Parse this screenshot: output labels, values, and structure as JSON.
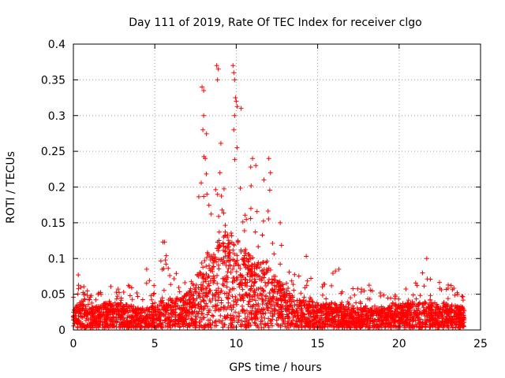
{
  "chart_data": {
    "type": "scatter",
    "title": "Day 111 of 2019, Rate Of TEC Index for receiver clgo",
    "xlabel": "GPS time / hours",
    "ylabel": "ROTI / TECUs",
    "xlim": [
      0,
      25
    ],
    "ylim": [
      0,
      0.4
    ],
    "grid": true,
    "x_ticks": [
      0,
      5,
      10,
      15,
      20,
      25
    ],
    "x_tick_labels": [
      "0",
      "5",
      "10",
      "15",
      "20",
      "25"
    ],
    "y_ticks": [
      0,
      0.05,
      0.1,
      0.15,
      0.2,
      0.25,
      0.3,
      0.35,
      0.4
    ],
    "y_tick_labels": [
      "0",
      "0.05",
      "0.1",
      "0.15",
      "0.2",
      "0.25",
      "0.3",
      "0.35",
      "0.4"
    ],
    "marker": "plus",
    "color": "#ff0000",
    "x_range_hours": [
      0,
      24
    ],
    "envelope": {
      "x": [
        0,
        0.5,
        1,
        2,
        3,
        4,
        4.5,
        5,
        5.5,
        6,
        6.5,
        7,
        7.5,
        8,
        8.5,
        9,
        9.5,
        10,
        10.5,
        11,
        11.5,
        12,
        12.5,
        13,
        13.5,
        14,
        15,
        16,
        17,
        18,
        19,
        20,
        21,
        21.7,
        22,
        23,
        24
      ],
      "y_max": [
        0.05,
        0.075,
        0.05,
        0.06,
        0.065,
        0.06,
        0.085,
        0.065,
        0.12,
        0.07,
        0.085,
        0.08,
        0.1,
        0.34,
        0.19,
        0.37,
        0.2,
        0.37,
        0.2,
        0.24,
        0.22,
        0.23,
        0.15,
        0.1,
        0.08,
        0.1,
        0.06,
        0.085,
        0.06,
        0.065,
        0.05,
        0.06,
        0.065,
        0.1,
        0.07,
        0.07,
        0.05
      ],
      "y_typical": [
        0.02,
        0.03,
        0.02,
        0.025,
        0.025,
        0.02,
        0.02,
        0.025,
        0.03,
        0.03,
        0.03,
        0.035,
        0.05,
        0.07,
        0.08,
        0.09,
        0.1,
        0.09,
        0.08,
        0.07,
        0.07,
        0.06,
        0.05,
        0.04,
        0.03,
        0.03,
        0.025,
        0.025,
        0.02,
        0.02,
        0.02,
        0.025,
        0.025,
        0.025,
        0.025,
        0.025,
        0.02
      ]
    },
    "notable_points": [
      {
        "x": 7.9,
        "y": 0.34
      },
      {
        "x": 8.0,
        "y": 0.335
      },
      {
        "x": 8.0,
        "y": 0.3
      },
      {
        "x": 7.95,
        "y": 0.28
      },
      {
        "x": 8.8,
        "y": 0.37
      },
      {
        "x": 8.85,
        "y": 0.35
      },
      {
        "x": 8.9,
        "y": 0.365
      },
      {
        "x": 9.8,
        "y": 0.37
      },
      {
        "x": 9.85,
        "y": 0.36
      },
      {
        "x": 9.9,
        "y": 0.35
      },
      {
        "x": 9.95,
        "y": 0.325
      },
      {
        "x": 10.0,
        "y": 0.32
      },
      {
        "x": 9.9,
        "y": 0.3
      },
      {
        "x": 10.3,
        "y": 0.31
      },
      {
        "x": 10.05,
        "y": 0.255
      },
      {
        "x": 9.85,
        "y": 0.28
      },
      {
        "x": 11.0,
        "y": 0.24
      },
      {
        "x": 11.2,
        "y": 0.23
      },
      {
        "x": 12.0,
        "y": 0.24
      },
      {
        "x": 12.1,
        "y": 0.22
      },
      {
        "x": 11.7,
        "y": 0.21
      },
      {
        "x": 5.5,
        "y": 0.123
      },
      {
        "x": 5.6,
        "y": 0.123
      },
      {
        "x": 5.7,
        "y": 0.104
      },
      {
        "x": 14.3,
        "y": 0.103
      },
      {
        "x": 21.7,
        "y": 0.1
      },
      {
        "x": 0.3,
        "y": 0.077
      },
      {
        "x": 4.5,
        "y": 0.085
      },
      {
        "x": 16.3,
        "y": 0.085
      },
      {
        "x": 8.1,
        "y": 0.24
      },
      {
        "x": 8.2,
        "y": 0.19
      },
      {
        "x": 9.0,
        "y": 0.22
      },
      {
        "x": 10.9,
        "y": 0.17
      },
      {
        "x": 12.7,
        "y": 0.15
      }
    ]
  }
}
